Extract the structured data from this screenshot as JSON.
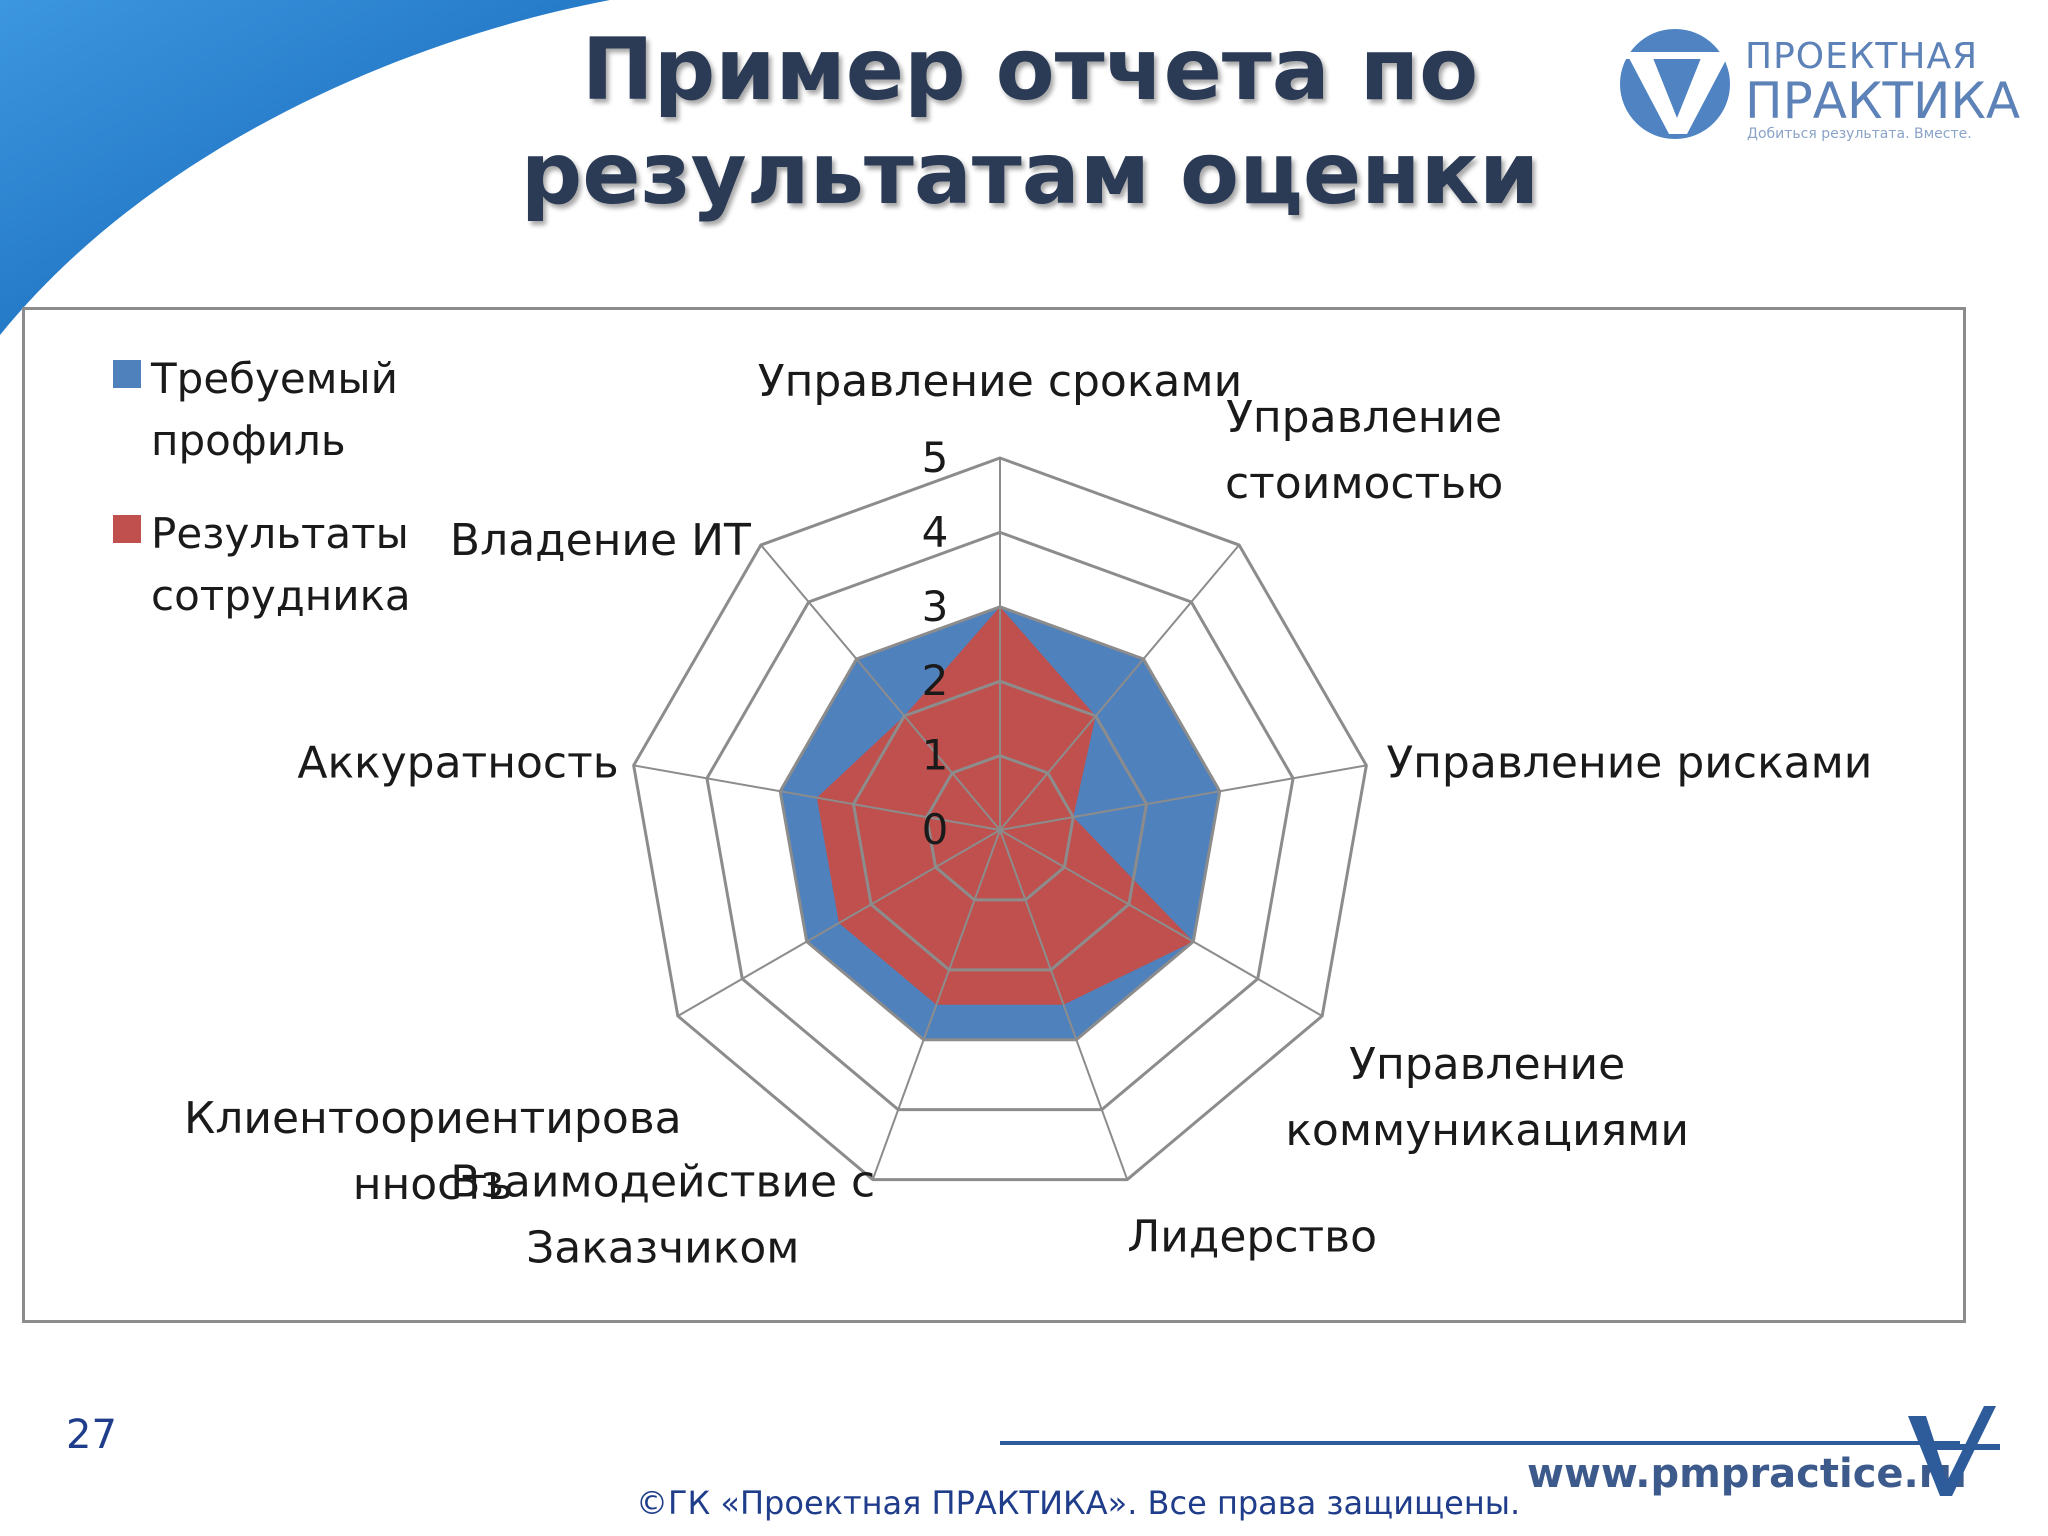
{
  "title": "Пример отчета по результатам оценки",
  "logo": {
    "name_line1": "ПРОЕКТНАЯ",
    "name_line2": "ПРАКТИКА",
    "tagline": "Добиться результата. Вместе."
  },
  "colors": {
    "required": "#4f81bd",
    "employee": "#c0504d",
    "grid": "#8c8c8c",
    "swoosh": "#1a73c8",
    "title": "#2b3a55"
  },
  "chart_data": {
    "type": "radar",
    "title": "",
    "categories": [
      [
        "Управление сроками"
      ],
      [
        "Управление",
        "стоимостью"
      ],
      [
        "Управление рисками"
      ],
      [
        "Управление",
        "коммуникациями"
      ],
      [
        "Лидерство"
      ],
      [
        "Взаимодействие с",
        "Заказчиком"
      ],
      [
        "Клиентоориентирова",
        "нность"
      ],
      [
        "Аккуратность"
      ],
      [
        "Владение ИТ"
      ]
    ],
    "range": [
      0,
      5
    ],
    "ticks": [
      "0",
      "1",
      "2",
      "3",
      "4",
      "5"
    ],
    "series": [
      {
        "name": "Требуемый профиль",
        "values": [
          3,
          3,
          3,
          3,
          3,
          3,
          3,
          3,
          3
        ]
      },
      {
        "name": "Результаты сотрудника",
        "values": [
          3,
          2,
          1,
          3,
          2.5,
          2.5,
          2.5,
          2.5,
          2
        ]
      }
    ],
    "legend": "top-left",
    "grid": true
  },
  "legend": {
    "item1": [
      "Требуемый",
      "профиль"
    ],
    "item2": [
      "Результаты",
      "сотрудника"
    ]
  },
  "footer": {
    "page_number": "27",
    "url": "www.pmpractice.ru",
    "copyright": "©ГК «Проектная ПРАКТИКА». Все права защищены."
  }
}
